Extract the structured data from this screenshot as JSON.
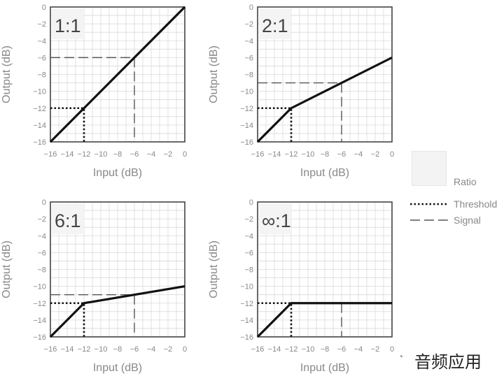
{
  "chart_data": [
    {
      "type": "line",
      "ratio_label": "1:1",
      "xlabel": "Input (dB)",
      "ylabel": "Output (dB)",
      "xlim": [
        -16,
        0
      ],
      "ylim": [
        -16,
        0
      ],
      "x_ticks": [
        "−16",
        "−14",
        "−12",
        "−10",
        "−8",
        "−6",
        "−4",
        "−2",
        "0"
      ],
      "y_ticks": [
        "0",
        "−2",
        "−4",
        "−6",
        "−8",
        "−10",
        "−12",
        "−14",
        "−16"
      ],
      "grid": true,
      "series": [
        {
          "name": "Ratio",
          "points": [
            [
              -16,
              -16
            ],
            [
              -12,
              -12
            ],
            [
              0,
              0
            ]
          ]
        },
        {
          "name": "Threshold",
          "points": [
            [
              -16,
              -12
            ],
            [
              -12,
              -12
            ],
            [
              -12,
              -16
            ]
          ]
        },
        {
          "name": "Signal",
          "points": [
            [
              -16,
              -6
            ],
            [
              -6,
              -6
            ],
            [
              -6,
              -16
            ]
          ]
        }
      ]
    },
    {
      "type": "line",
      "ratio_label": "2:1",
      "xlabel": "Input (dB)",
      "ylabel": "Output (dB)",
      "xlim": [
        -16,
        0
      ],
      "ylim": [
        -16,
        0
      ],
      "x_ticks": [
        "−16",
        "−14",
        "−12",
        "−10",
        "−8",
        "−6",
        "−4",
        "−2",
        "0"
      ],
      "y_ticks": [
        "0",
        "−2",
        "−4",
        "−6",
        "−8",
        "−10",
        "−12",
        "−14",
        "−16"
      ],
      "grid": true,
      "series": [
        {
          "name": "Ratio",
          "points": [
            [
              -16,
              -16
            ],
            [
              -12,
              -12
            ],
            [
              0,
              -6
            ]
          ]
        },
        {
          "name": "Threshold",
          "points": [
            [
              -16,
              -12
            ],
            [
              -12,
              -12
            ],
            [
              -12,
              -16
            ]
          ]
        },
        {
          "name": "Signal",
          "points": [
            [
              -16,
              -9
            ],
            [
              -6,
              -9
            ],
            [
              -6,
              -16
            ]
          ]
        }
      ]
    },
    {
      "type": "line",
      "ratio_label": "6:1",
      "xlabel": "Input (dB)",
      "ylabel": "Output (dB)",
      "xlim": [
        -16,
        0
      ],
      "ylim": [
        -16,
        0
      ],
      "x_ticks": [
        "−16",
        "−14",
        "−12",
        "−10",
        "−8",
        "−6",
        "−4",
        "−2",
        "0"
      ],
      "y_ticks": [
        "0",
        "−2",
        "−4",
        "−6",
        "−8",
        "−10",
        "−12",
        "−14",
        "−16"
      ],
      "grid": true,
      "series": [
        {
          "name": "Ratio",
          "points": [
            [
              -16,
              -16
            ],
            [
              -12,
              -12
            ],
            [
              0,
              -10
            ]
          ]
        },
        {
          "name": "Threshold",
          "points": [
            [
              -16,
              -12
            ],
            [
              -12,
              -12
            ],
            [
              -12,
              -16
            ]
          ]
        },
        {
          "name": "Signal",
          "points": [
            [
              -16,
              -11
            ],
            [
              -6,
              -11
            ],
            [
              -6,
              -16
            ]
          ]
        }
      ]
    },
    {
      "type": "line",
      "ratio_label": "∞:1",
      "xlabel": "Input (dB)",
      "ylabel": "Output (dB)",
      "xlim": [
        -16,
        0
      ],
      "ylim": [
        -16,
        0
      ],
      "x_ticks": [
        "−16",
        "−14",
        "−12",
        "−10",
        "−8",
        "−6",
        "−4",
        "−2",
        "0"
      ],
      "y_ticks": [
        "0",
        "−2",
        "−4",
        "−6",
        "−8",
        "−10",
        "−12",
        "−14",
        "−16"
      ],
      "grid": true,
      "series": [
        {
          "name": "Ratio",
          "points": [
            [
              -16,
              -16
            ],
            [
              -12,
              -12
            ],
            [
              0,
              -12
            ]
          ]
        },
        {
          "name": "Threshold",
          "points": [
            [
              -16,
              -12
            ],
            [
              -12,
              -12
            ],
            [
              -12,
              -16
            ]
          ]
        },
        {
          "name": "Signal",
          "points": [
            [
              -6,
              -12
            ],
            [
              -6,
              -16
            ]
          ]
        }
      ]
    }
  ],
  "legend": {
    "ratio": "Ratio",
    "threshold": "Threshold",
    "signal": "Signal"
  },
  "watermark": "音频应用",
  "colors": {
    "line": "#111111",
    "grid": "#d9d9d9",
    "axis_text": "#888888"
  }
}
